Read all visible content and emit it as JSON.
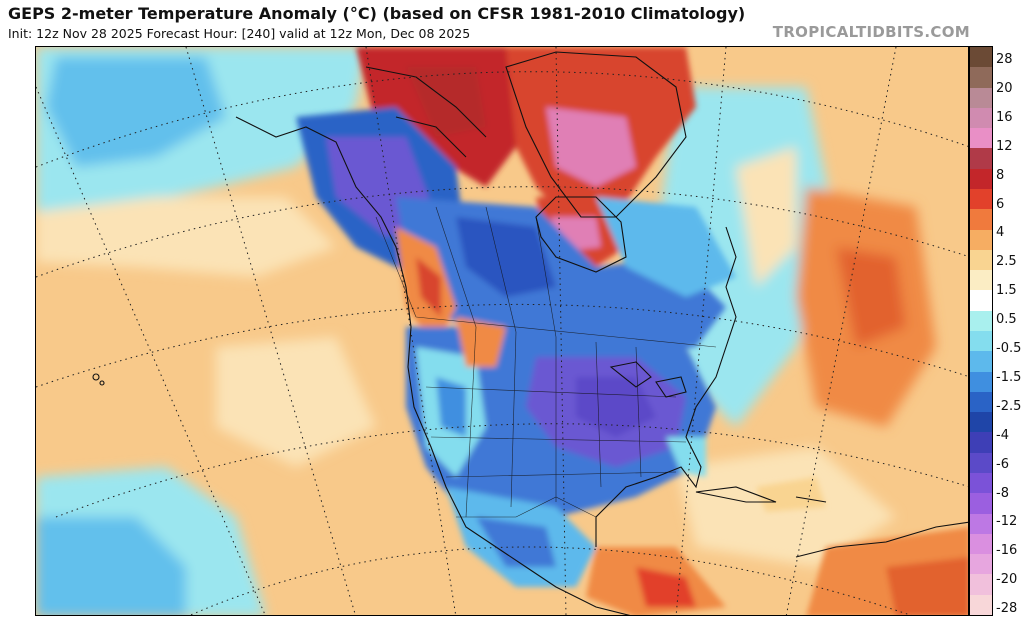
{
  "header": {
    "title": "GEPS 2-meter Temperature Anomaly (°C) (based on CFSR 1981-2010 Climatology)",
    "subtitle": "Init: 12z Nov 28 2025   Forecast Hour: [240]   valid at 12z Mon, Dec 08 2025",
    "credit": "TROPICALTIDBITS.COM"
  },
  "legend": {
    "ticks": [
      "28",
      "20",
      "16",
      "12",
      "8",
      "6",
      "4",
      "2.5",
      "1.5",
      "0.5",
      "-0.5",
      "-1.5",
      "-2.5",
      "-4",
      "-6",
      "-8",
      "-12",
      "-16",
      "-20",
      "-28"
    ],
    "colors": [
      "#6b4a35",
      "#8f6a5a",
      "#b98a96",
      "#d08bb0",
      "#e98fc6",
      "#b03a48",
      "#c3262a",
      "#e2412b",
      "#f07a3d",
      "#f6ad62",
      "#f9d491",
      "#fbedc4",
      "#ffffff",
      "#a9f0ee",
      "#84ddee",
      "#5db9ec",
      "#3f8fe0",
      "#2a63c6",
      "#1f45a8",
      "#3e3fb6",
      "#5b4ac8",
      "#7b52d8",
      "#9b5fe0",
      "#bd78e4",
      "#da8fe0",
      "#e7a6df",
      "#f1c0dc",
      "#f8d7d9"
    ]
  },
  "map": {
    "colors": {
      "ocean_warm": "#f8c98a",
      "ocean_pale": "#fbe3b6",
      "ocean_cyan": "#9be6ef",
      "ocean_blue": "#62c0ec",
      "land_blue": "#3f78d6",
      "land_deep": "#2a55c0",
      "land_purple": "#6a58d2",
      "arctic_red": "#d8452e",
      "arctic_dark": "#b52a2a",
      "hot_pink": "#e07fb5",
      "warm_orange": "#f08a45"
    }
  }
}
